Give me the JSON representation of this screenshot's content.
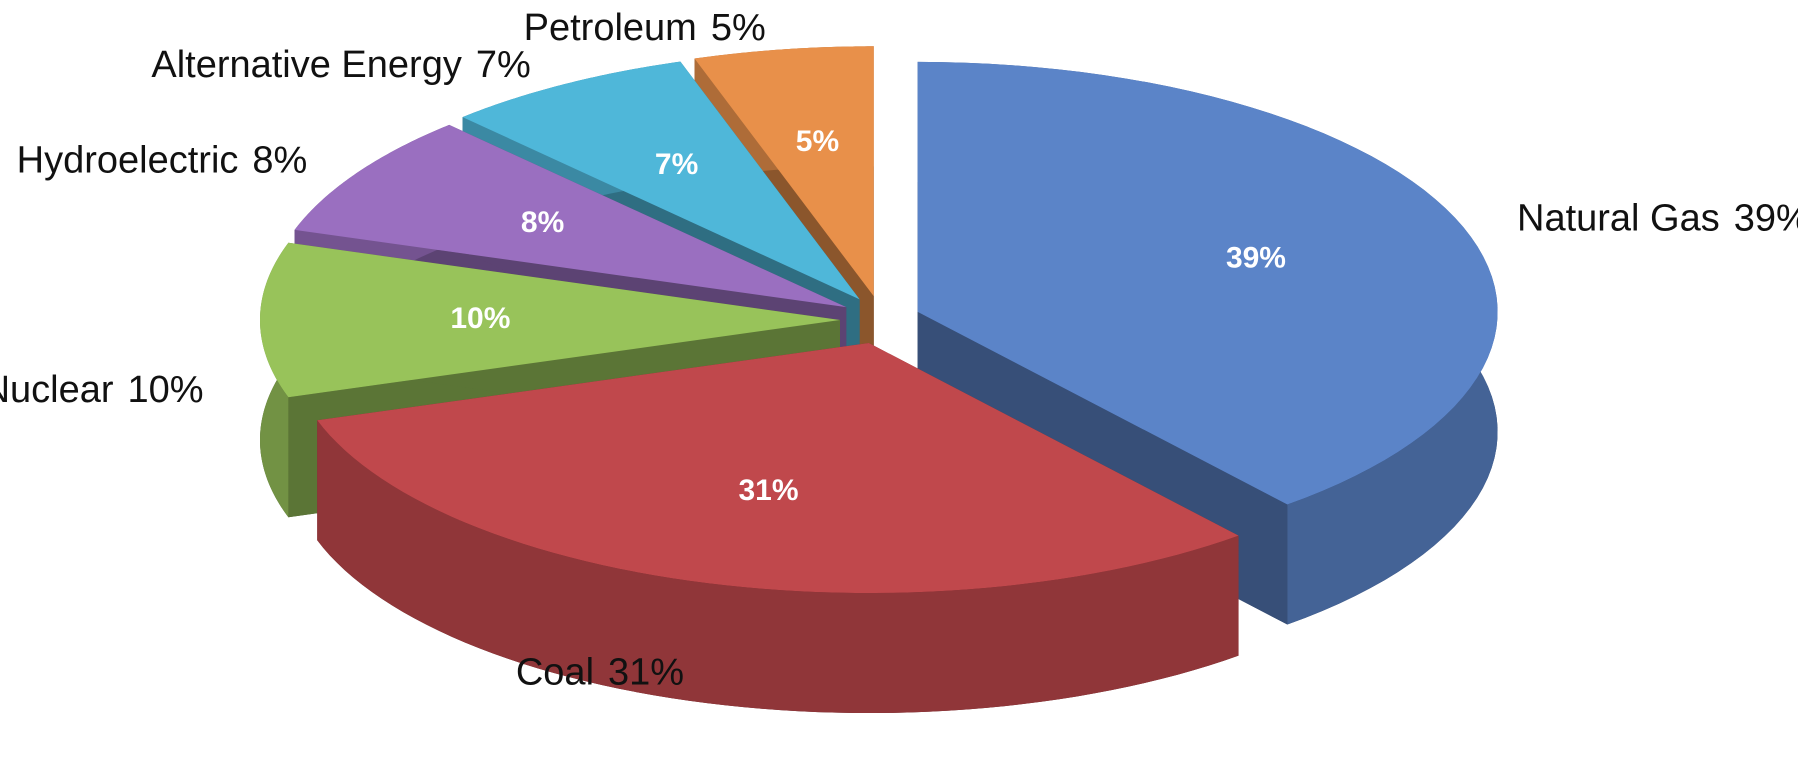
{
  "chart_data": {
    "type": "pie",
    "categories": [
      "Natural Gas",
      "Coal",
      "Nuclear",
      "Hydroelectric",
      "Alternative Energy",
      "Petroleum"
    ],
    "values": [
      39,
      31,
      10,
      8,
      7,
      5
    ],
    "value_labels": [
      "39%",
      "31%",
      "10%",
      "8%",
      "7%",
      "5%"
    ],
    "colors": [
      "#5b84c8",
      "#c0484c",
      "#98c35a",
      "#9a6fc0",
      "#4fb7d9",
      "#e8904a"
    ]
  }
}
